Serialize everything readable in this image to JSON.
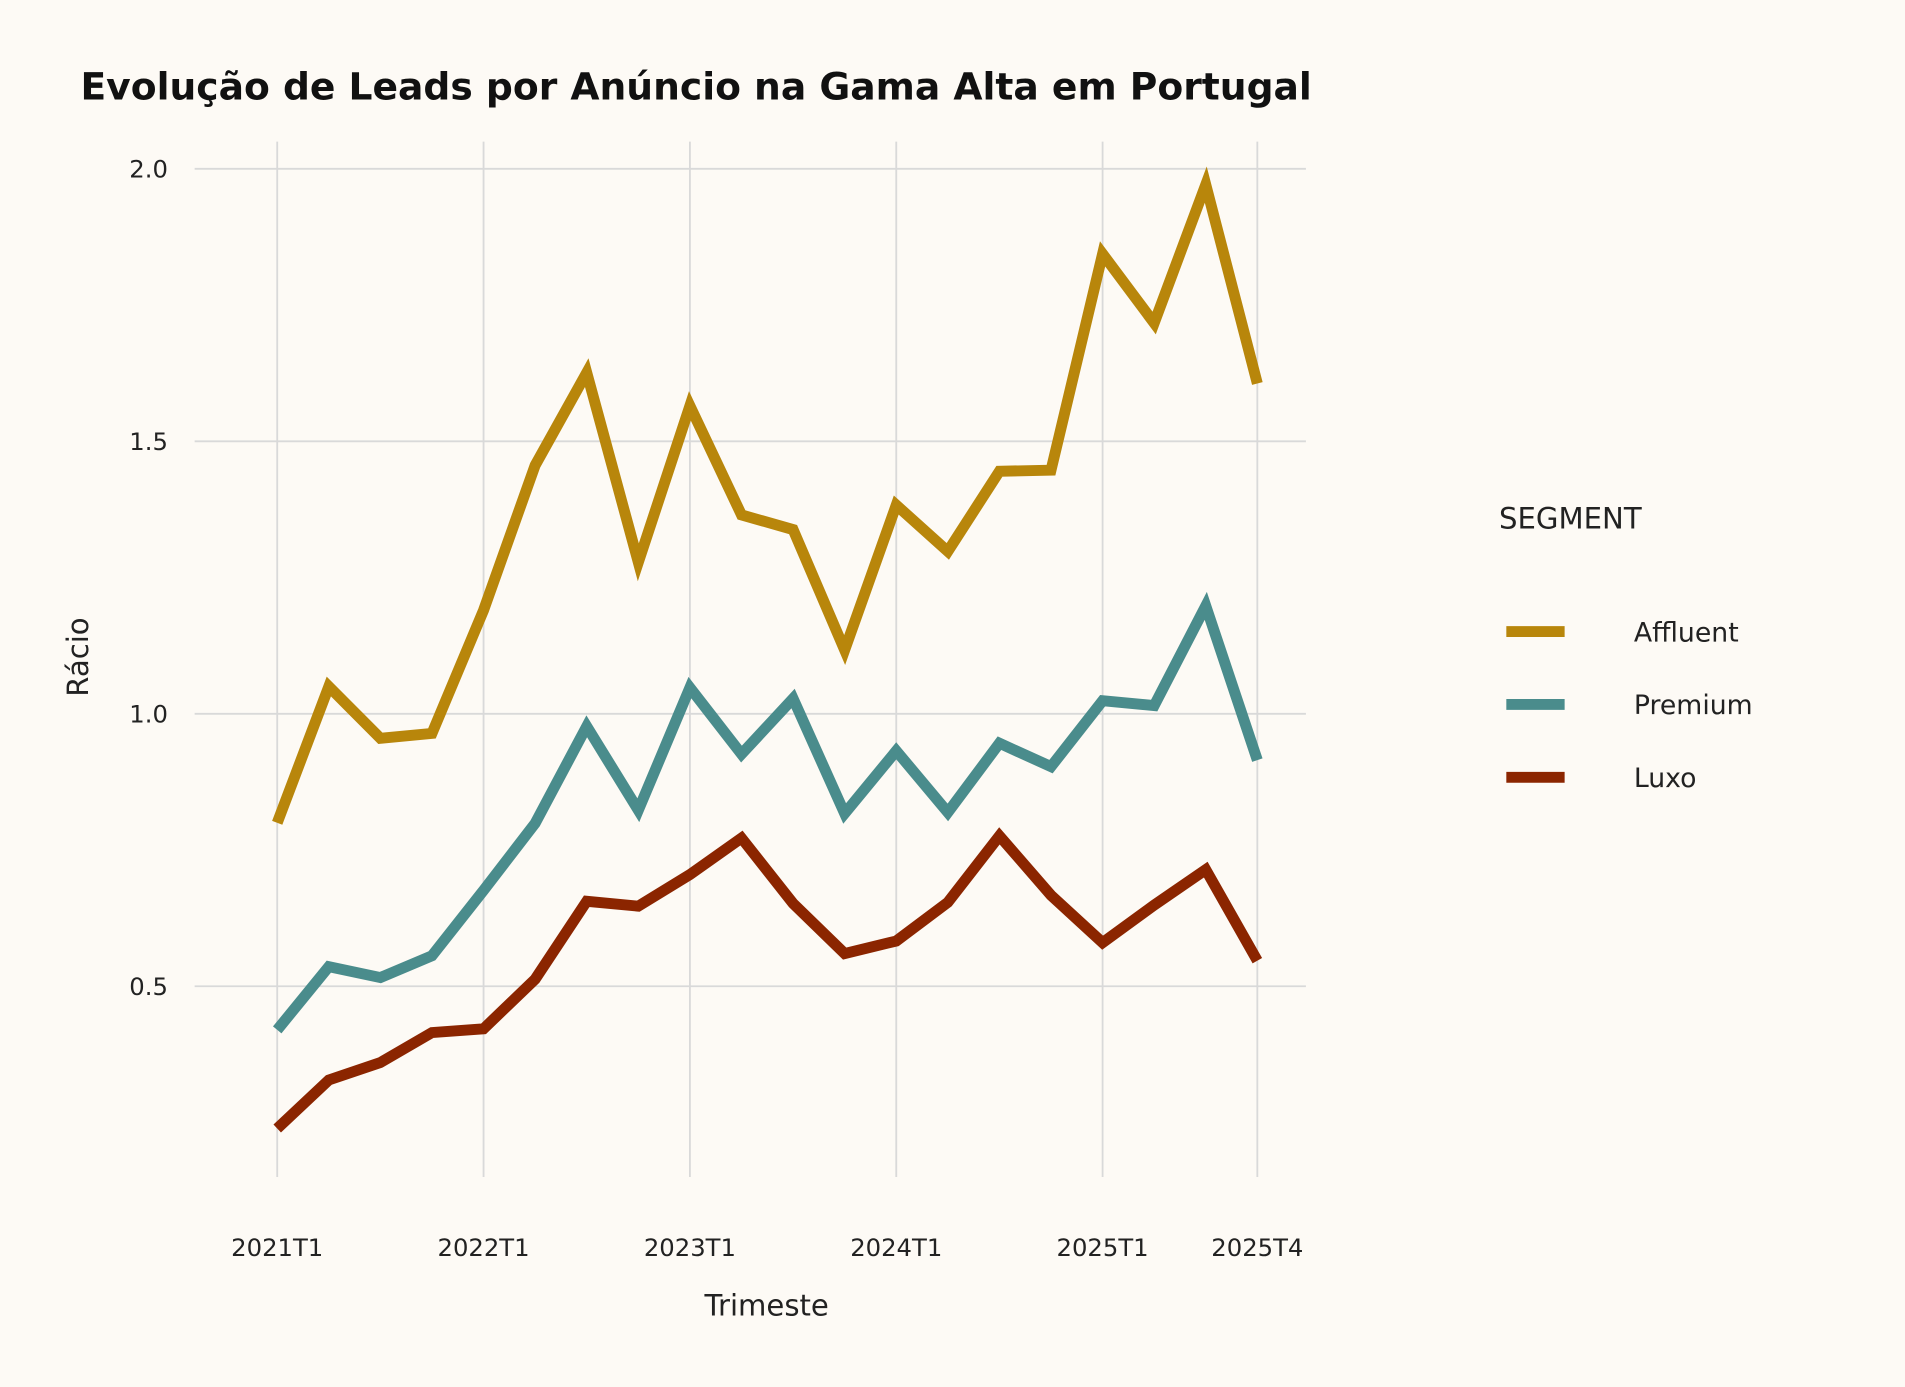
{
  "chart_data": {
    "type": "line",
    "title": "Evolução de Leads por Anúncio na Gama Alta em Portugal",
    "xlabel": "Trimeste",
    "ylabel": "Rácio",
    "x": [
      "2021T1",
      "2021T2",
      "2021T3",
      "2021T4",
      "2022T1",
      "2022T2",
      "2022T3",
      "2022T4",
      "2023T1",
      "2023T2",
      "2023T3",
      "2023T4",
      "2024T1",
      "2024T2",
      "2024T3",
      "2024T4",
      "2025T1",
      "2025T2",
      "2025T3",
      "2025T4"
    ],
    "x_tick_labels": [
      "2021T1",
      "2022T1",
      "2023T1",
      "2024T1",
      "2025T1",
      "2025T4"
    ],
    "y_ticks": [
      "0.5",
      "1.0",
      "1.5",
      "2.0"
    ],
    "ylim": [
      0.15,
      2.05
    ],
    "grid": true,
    "legend": {
      "title": "SEGMENT",
      "placement": "right"
    },
    "series": [
      {
        "name": "Affluent",
        "color": "#b8860b",
        "values": [
          0.8,
          1.05,
          0.955,
          0.964,
          1.19,
          1.456,
          1.626,
          1.278,
          1.565,
          1.365,
          1.338,
          1.117,
          1.383,
          1.298,
          1.445,
          1.447,
          1.844,
          1.717,
          1.971,
          1.606
        ]
      },
      {
        "name": "Premium",
        "color": "#4a8c8c",
        "values": [
          0.42,
          0.536,
          0.516,
          0.556,
          0.676,
          0.799,
          0.977,
          0.823,
          1.048,
          0.926,
          1.028,
          0.817,
          0.932,
          0.819,
          0.946,
          0.903,
          1.024,
          1.015,
          1.198,
          0.915
        ]
      },
      {
        "name": "Luxo",
        "color": "#8b2500",
        "values": [
          0.239,
          0.328,
          0.36,
          0.415,
          0.422,
          0.513,
          0.656,
          0.647,
          0.705,
          0.772,
          0.652,
          0.56,
          0.583,
          0.654,
          0.776,
          0.667,
          0.58,
          0.649,
          0.714,
          0.547
        ]
      }
    ]
  }
}
